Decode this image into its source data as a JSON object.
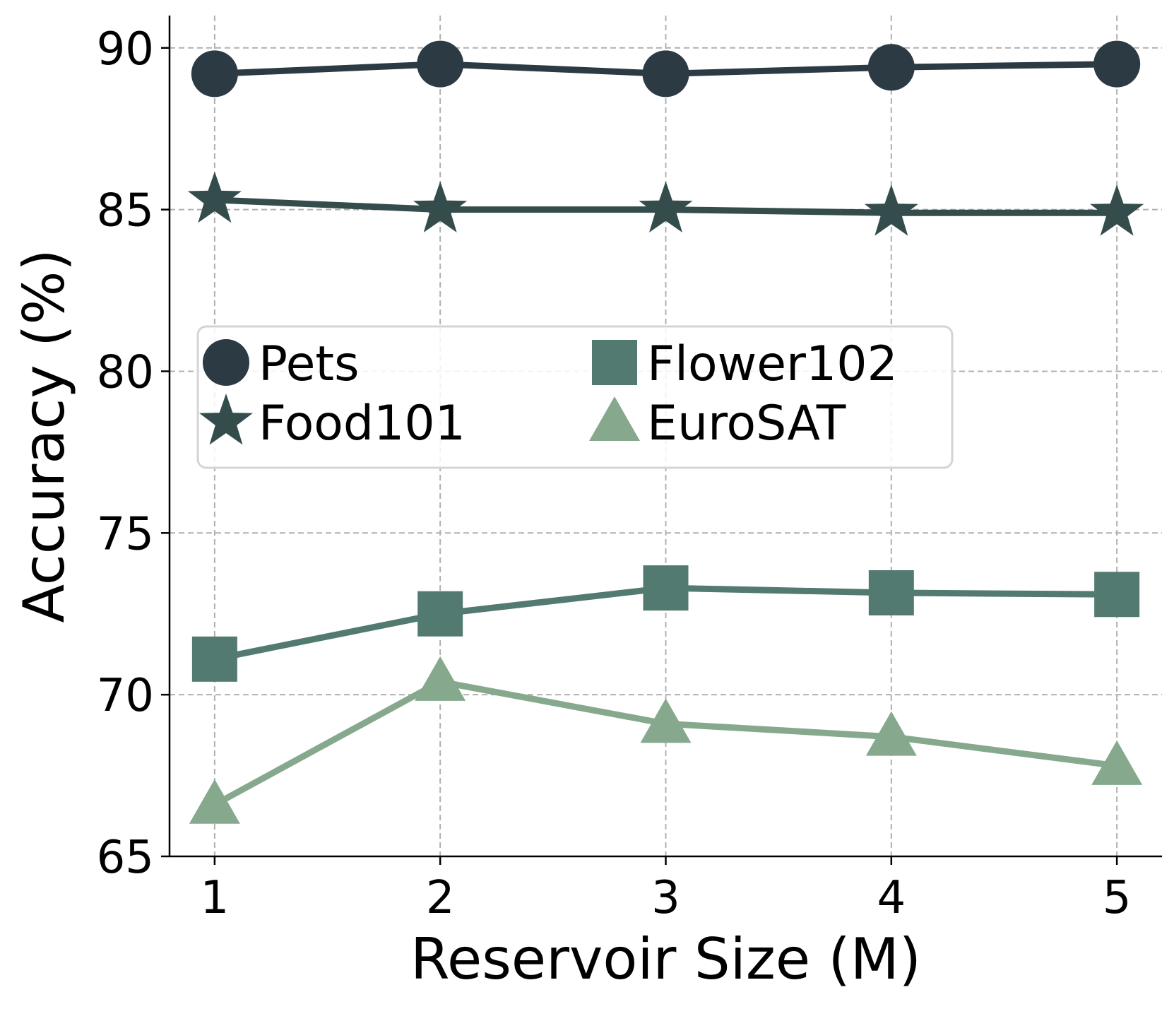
{
  "chart_data": {
    "type": "line",
    "title": "",
    "xlabel": "Reservoir Size (M)",
    "ylabel": "Accuracy (%)",
    "x": [
      1,
      2,
      3,
      4,
      5
    ],
    "x_ticks": [
      "1",
      "2",
      "3",
      "4",
      "5"
    ],
    "xlim": [
      0.8,
      5.2
    ],
    "ylim": [
      65,
      91
    ],
    "y_ticks": [
      65,
      70,
      75,
      80,
      85,
      90
    ],
    "y_tick_labels": [
      "65",
      "70",
      "75",
      "80",
      "85",
      "90"
    ],
    "grid": true,
    "legend_position": "center-left, two columns",
    "series": [
      {
        "name": "Pets",
        "marker": "circle",
        "color": "#2c3a44",
        "values": [
          89.2,
          89.5,
          89.2,
          89.4,
          89.5
        ]
      },
      {
        "name": "Food101",
        "marker": "star",
        "color": "#344d4c",
        "values": [
          85.3,
          85.0,
          85.0,
          84.9,
          84.9
        ]
      },
      {
        "name": "Flower102",
        "marker": "square",
        "color": "#527a70",
        "values": [
          71.1,
          72.5,
          73.3,
          73.15,
          73.1
        ]
      },
      {
        "name": "EuroSAT",
        "marker": "triangle",
        "color": "#86a98d",
        "values": [
          66.6,
          70.4,
          69.1,
          68.7,
          67.8
        ]
      }
    ],
    "legend_columns": [
      [
        "Pets",
        "Food101"
      ],
      [
        "Flower102",
        "EuroSAT"
      ]
    ]
  }
}
